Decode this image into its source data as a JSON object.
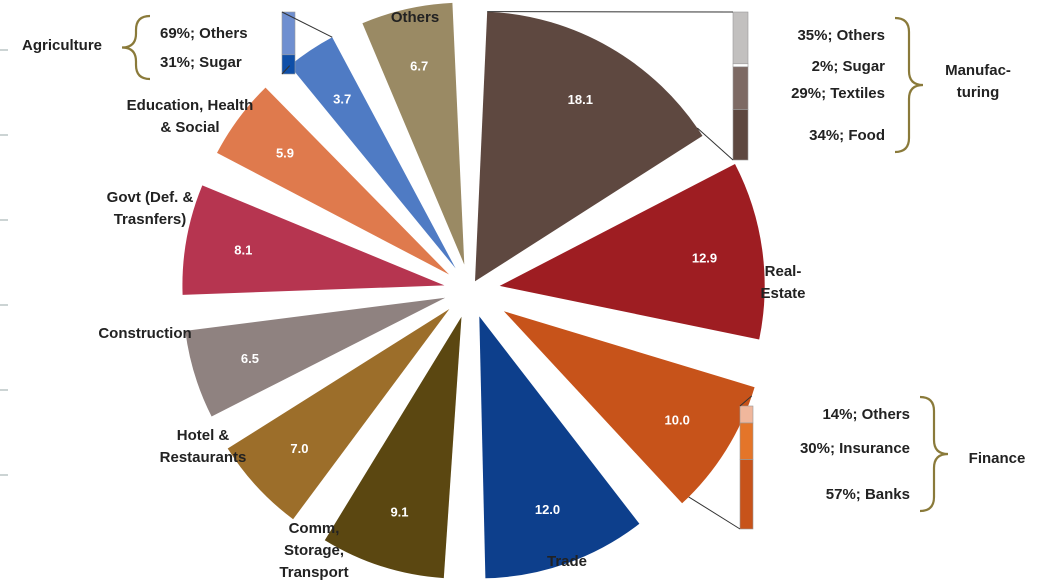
{
  "chart_data": {
    "type": "pie",
    "slices": [
      {
        "label": "Manufac- turing",
        "value": 18.1,
        "color": "#5e4840"
      },
      {
        "label": "Real- Estate",
        "value": 12.9,
        "color": "#9e1d22"
      },
      {
        "label": "Finance",
        "value": 10.0,
        "color": "#c7531a"
      },
      {
        "label": "Trade",
        "value": 12.0,
        "color": "#0d3f8c"
      },
      {
        "label": "Comm, Storage, Transport",
        "value": 9.1,
        "color": "#5b4711"
      },
      {
        "label": "Hotel & Restaurants",
        "value": 7.0,
        "color": "#9c6e2a"
      },
      {
        "label": "Construction",
        "value": 6.5,
        "color": "#8f8280"
      },
      {
        "label": "Govt (Def. & Trasnfers)",
        "value": 8.1,
        "color": "#b63550"
      },
      {
        "label": "Education, Health & Social",
        "value": 5.9,
        "color": "#df7a4d"
      },
      {
        "label": "Agriculture",
        "value": 3.7,
        "color": "#4f7bc4"
      },
      {
        "label": "Others",
        "value": 6.7,
        "color": "#9a8a64"
      }
    ],
    "breakdowns": [
      {
        "parent": "Manufac- turing",
        "items": [
          {
            "pct": "35%;",
            "name": "Others",
            "color": "#c2c0bf"
          },
          {
            "pct": "2%;",
            "name": "Sugar",
            "color": "#ffffff"
          },
          {
            "pct": "29%;",
            "name": "Textiles",
            "color": "#7d6a64"
          },
          {
            "pct": "34%;",
            "name": "Food",
            "color": "#5e4840"
          }
        ]
      },
      {
        "parent": "Finance",
        "items": [
          {
            "pct": "14%;",
            "name": "Others",
            "color": "#f0b79c"
          },
          {
            "pct": "30%;",
            "name": "Insurance",
            "color": "#e47529"
          },
          {
            "pct": "57%;",
            "name": "Banks",
            "color": "#c7531a"
          }
        ]
      },
      {
        "parent": "Agriculture",
        "items": [
          {
            "pct": "69%;",
            "name": "Others",
            "color": "#6f8fd0"
          },
          {
            "pct": "31%;",
            "name": "Sugar",
            "color": "#0f4fa8"
          }
        ]
      }
    ]
  }
}
